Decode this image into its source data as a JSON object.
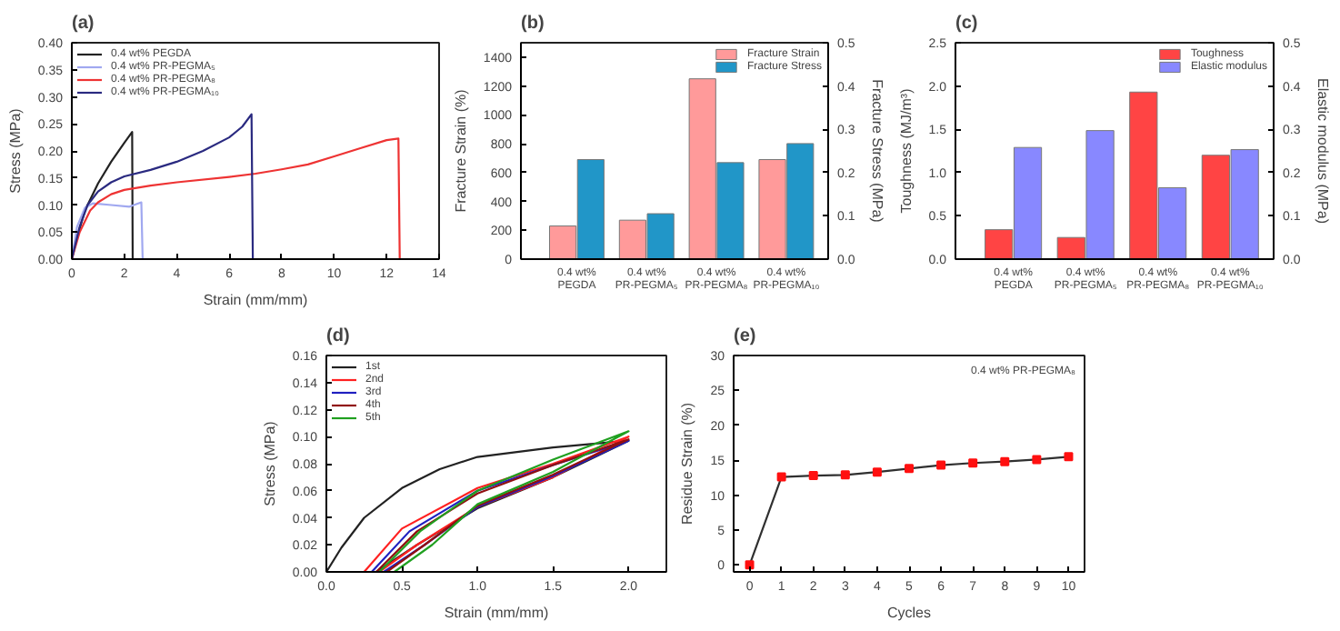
{
  "chart_data": [
    {
      "type": "line",
      "title": "(a)",
      "xlabel": "Strain (mm/mm)",
      "ylabel": "Stress (MPa)",
      "xlim": [
        0,
        14
      ],
      "xticks": [
        0,
        2,
        4,
        6,
        8,
        10,
        12,
        14
      ],
      "ylim": [
        0,
        0.4
      ],
      "yticks": [
        {
          "value": 0,
          "label": "0.00"
        },
        {
          "value": 0.05,
          "label": "0.05"
        },
        {
          "value": 0.1,
          "label": "0.10"
        },
        {
          "value": 0.15,
          "label": "0.15"
        },
        {
          "value": 0.2,
          "label": "0.20"
        },
        {
          "value": 0.25,
          "label": "0.25"
        },
        {
          "value": 0.3,
          "label": "0.30"
        },
        {
          "value": 0.35,
          "label": "0.35"
        },
        {
          "value": 0.4,
          "label": "0.40"
        }
      ],
      "legend": "top left",
      "series": [
        {
          "name": "0.4 wt% PEGDA",
          "color": "#222222",
          "x": [
            0,
            0.2,
            0.5,
            1,
            1.5,
            2,
            2.3,
            2.32
          ],
          "values": [
            0,
            0.04,
            0.09,
            0.14,
            0.18,
            0.215,
            0.235,
            0
          ]
        },
        {
          "name": "0.4 wt% PR-PEGMA₅",
          "color": "#a0a8f0",
          "x": [
            0,
            0.2,
            0.5,
            0.8,
            1.5,
            2.2,
            2.65,
            2.7
          ],
          "values": [
            0,
            0.06,
            0.095,
            0.103,
            0.1,
            0.097,
            0.105,
            0
          ]
        },
        {
          "name": "0.4 wt% PR-PEGMA₈",
          "color": "#ee3333",
          "x": [
            0,
            0.3,
            0.7,
            1,
            1.5,
            2,
            3,
            4,
            6,
            7,
            8,
            9,
            10,
            11,
            12,
            12.45,
            12.5
          ],
          "values": [
            0,
            0.05,
            0.09,
            0.105,
            0.12,
            0.128,
            0.136,
            0.142,
            0.152,
            0.158,
            0.166,
            0.175,
            0.19,
            0.205,
            0.22,
            0.223,
            0
          ]
        },
        {
          "name": "0.4 wt% PR-PEGMA₁₀",
          "color": "#2a2a80",
          "x": [
            0,
            0.3,
            0.6,
            1,
            1.5,
            2,
            3,
            4,
            5,
            6,
            6.5,
            6.85,
            6.9
          ],
          "values": [
            0,
            0.06,
            0.1,
            0.125,
            0.142,
            0.153,
            0.165,
            0.18,
            0.2,
            0.225,
            0.245,
            0.268,
            0
          ]
        }
      ]
    },
    {
      "type": "bar",
      "title": "(b)",
      "ylabel": "Fracture Strain (%)",
      "y2label": "Fracture Stress (MPa)",
      "categories": [
        "0.4 wt%\nPEGDA",
        "0.4 wt%\nPR-PEGMA₅",
        "0.4 wt%\nPR-PEGMA₈",
        "0.4 wt%\nPR-PEGMA₁₀"
      ],
      "ylim": [
        0,
        1500
      ],
      "yticks": [
        0,
        200,
        400,
        600,
        800,
        1000,
        1200,
        1400
      ],
      "y2lim": [
        0,
        0.5
      ],
      "y2ticks": [
        {
          "value": 0,
          "label": "0.0"
        },
        {
          "value": 0.1,
          "label": "0.1"
        },
        {
          "value": 0.2,
          "label": "0.2"
        },
        {
          "value": 0.3,
          "label": "0.3"
        },
        {
          "value": 0.4,
          "label": "0.4"
        },
        {
          "value": 0.5,
          "label": "0.5"
        }
      ],
      "legend": "top right",
      "series": [
        {
          "name": "Fracture Strain",
          "color": "#ff9a9a",
          "values": [
            230,
            270,
            1250,
            690
          ]
        },
        {
          "name": "Fracture Stress",
          "color": "#2196c8",
          "axis": "y2",
          "values": [
            0.23,
            0.105,
            0.223,
            0.267
          ]
        }
      ]
    },
    {
      "type": "bar",
      "title": "(c)",
      "ylabel": "Toughness (MJ/m³)",
      "y2label": "Elastic modulus (MPa)",
      "categories": [
        "0.4 wt%\nPEGDA",
        "0.4 wt%\nPR-PEGMA₅",
        "0.4 wt%\nPR-PEGMA₈",
        "0.4 wt%\nPR-PEGMA₁₀"
      ],
      "ylim": [
        0,
        2.5
      ],
      "yticks": [
        {
          "value": 0,
          "label": "0.0"
        },
        {
          "value": 0.5,
          "label": "0.5"
        },
        {
          "value": 1,
          "label": "1.0"
        },
        {
          "value": 1.5,
          "label": "1.5"
        },
        {
          "value": 2,
          "label": "2.0"
        },
        {
          "value": 2.5,
          "label": "2.5"
        }
      ],
      "y2lim": [
        0,
        0.5
      ],
      "y2ticks": [
        {
          "value": 0,
          "label": "0.0"
        },
        {
          "value": 0.1,
          "label": "0.1"
        },
        {
          "value": 0.2,
          "label": "0.2"
        },
        {
          "value": 0.3,
          "label": "0.3"
        },
        {
          "value": 0.4,
          "label": "0.4"
        },
        {
          "value": 0.5,
          "label": "0.5"
        }
      ],
      "legend": "top right",
      "series": [
        {
          "name": "Toughness",
          "color": "#ff4444",
          "values": [
            0.34,
            0.25,
            1.93,
            1.2
          ]
        },
        {
          "name": "Elastic modulus",
          "color": "#8888ff",
          "axis": "y2",
          "values": [
            0.258,
            0.297,
            0.165,
            0.253
          ]
        }
      ]
    },
    {
      "type": "line",
      "title": "(d)",
      "xlabel": "Strain (mm/mm)",
      "ylabel": "Stress (MPa)",
      "xlim": [
        0,
        2.25
      ],
      "xticks": [
        {
          "value": 0,
          "label": "0.0"
        },
        {
          "value": 0.5,
          "label": "0.5"
        },
        {
          "value": 1,
          "label": "1.0"
        },
        {
          "value": 1.5,
          "label": "1.5"
        },
        {
          "value": 2,
          "label": "2.0"
        }
      ],
      "ylim": [
        0,
        0.16
      ],
      "yticks": [
        {
          "value": 0,
          "label": "0.00"
        },
        {
          "value": 0.02,
          "label": "0.02"
        },
        {
          "value": 0.04,
          "label": "0.04"
        },
        {
          "value": 0.06,
          "label": "0.06"
        },
        {
          "value": 0.08,
          "label": "0.08"
        },
        {
          "value": 0.1,
          "label": "0.10"
        },
        {
          "value": 0.12,
          "label": "0.12"
        },
        {
          "value": 0.14,
          "label": "0.14"
        },
        {
          "value": 0.16,
          "label": "0.16"
        }
      ],
      "legend": "top left",
      "series": [
        {
          "name": "1st",
          "color": "#222222",
          "x": [
            0,
            0.1,
            0.25,
            0.5,
            0.75,
            1,
            1.5,
            2,
            1.5,
            1,
            0.6,
            0.33
          ],
          "values": [
            0,
            0.018,
            0.04,
            0.062,
            0.076,
            0.085,
            0.092,
            0.097,
            0.07,
            0.047,
            0.02,
            0
          ]
        },
        {
          "name": "2nd",
          "color": "#ff2020",
          "x": [
            0.25,
            0.5,
            1,
            1.5,
            2,
            1.5,
            1,
            0.6,
            0.35
          ],
          "values": [
            0,
            0.032,
            0.062,
            0.08,
            0.1,
            0.07,
            0.048,
            0.02,
            0
          ]
        },
        {
          "name": "3rd",
          "color": "#2020c0",
          "x": [
            0.3,
            0.55,
            1,
            1.5,
            2,
            1.5,
            1,
            0.65,
            0.38
          ],
          "values": [
            0,
            0.03,
            0.06,
            0.079,
            0.097,
            0.071,
            0.048,
            0.02,
            0
          ]
        },
        {
          "name": "4th",
          "color": "#901010",
          "x": [
            0.33,
            0.6,
            1,
            1.5,
            2,
            1.5,
            1,
            0.65,
            0.4
          ],
          "values": [
            0,
            0.03,
            0.058,
            0.079,
            0.098,
            0.072,
            0.049,
            0.02,
            0
          ]
        },
        {
          "name": "5th",
          "color": "#20a020",
          "x": [
            0.35,
            0.62,
            1,
            1.5,
            2,
            1.5,
            1,
            0.7,
            0.45
          ],
          "values": [
            0,
            0.03,
            0.06,
            0.083,
            0.104,
            0.074,
            0.05,
            0.02,
            0
          ]
        }
      ]
    },
    {
      "type": "line",
      "title": "(e)",
      "xlabel": "Cycles",
      "ylabel": "Residue Strain (%)",
      "xlim": [
        -0.5,
        10.5
      ],
      "xticks": [
        0,
        1,
        2,
        3,
        4,
        5,
        6,
        7,
        8,
        9,
        10
      ],
      "ylim": [
        -1,
        30
      ],
      "yticks": [
        0,
        5,
        10,
        15,
        20,
        25,
        30
      ],
      "annotations": [
        "0.4 wt% PR-PEGMA₈"
      ],
      "x": [
        0,
        1,
        2,
        3,
        4,
        5,
        6,
        7,
        8,
        9,
        10
      ],
      "series": [
        {
          "type": "line",
          "color": "#303030",
          "values": [
            0,
            12.6,
            12.8,
            12.9,
            13.3,
            13.8,
            14.3,
            14.6,
            14.8,
            15.1,
            15.5
          ]
        },
        {
          "type": "scatter",
          "color": "#ff1010",
          "marker": "square",
          "values": [
            0,
            12.6,
            12.8,
            12.9,
            13.3,
            13.8,
            14.3,
            14.6,
            14.8,
            15.1,
            15.5
          ]
        }
      ]
    }
  ]
}
